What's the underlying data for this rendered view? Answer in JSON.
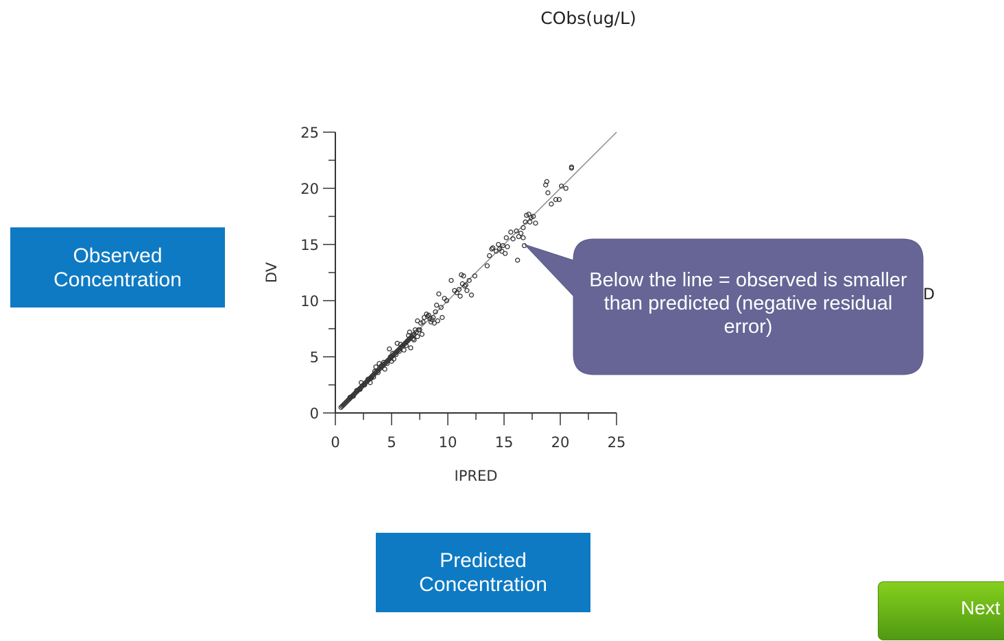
{
  "chart_data": {
    "type": "scatter",
    "title": "CObs(ug/L)",
    "xlabel": "IPRED",
    "ylabel": "DV",
    "xlim": [
      0,
      25
    ],
    "ylim": [
      0,
      25
    ],
    "x_ticks": [
      "0",
      "5",
      "10",
      "15",
      "20",
      "25"
    ],
    "y_ticks": [
      "0",
      "5",
      "10",
      "15",
      "20",
      "25"
    ],
    "identity_line": true,
    "points": [
      [
        0.5,
        0.5
      ],
      [
        0.6,
        0.6
      ],
      [
        0.7,
        0.7
      ],
      [
        0.8,
        0.8
      ],
      [
        0.9,
        0.9
      ],
      [
        1.0,
        1.0
      ],
      [
        1.1,
        1.1
      ],
      [
        1.2,
        1.2
      ],
      [
        1.3,
        1.3
      ],
      [
        1.4,
        1.4
      ],
      [
        1.5,
        1.5
      ],
      [
        1.6,
        1.6
      ],
      [
        1.7,
        1.7
      ],
      [
        1.8,
        1.8
      ],
      [
        1.9,
        1.9
      ],
      [
        2.0,
        2.0
      ],
      [
        2.1,
        2.1
      ],
      [
        2.2,
        2.2
      ],
      [
        2.3,
        2.3
      ],
      [
        2.4,
        2.4
      ],
      [
        2.5,
        2.5
      ],
      [
        2.6,
        2.6
      ],
      [
        2.7,
        2.7
      ],
      [
        2.8,
        2.8
      ],
      [
        2.9,
        2.9
      ],
      [
        3.0,
        3.0
      ],
      [
        3.1,
        3.1
      ],
      [
        3.2,
        3.2
      ],
      [
        3.3,
        3.3
      ],
      [
        3.4,
        3.4
      ],
      [
        3.5,
        3.5
      ],
      [
        3.6,
        3.6
      ],
      [
        3.7,
        3.7
      ],
      [
        3.8,
        3.8
      ],
      [
        3.9,
        3.9
      ],
      [
        4.0,
        4.0
      ],
      [
        4.1,
        4.1
      ],
      [
        4.2,
        4.2
      ],
      [
        4.3,
        4.3
      ],
      [
        4.4,
        4.4
      ],
      [
        4.5,
        4.5
      ],
      [
        4.6,
        4.6
      ],
      [
        4.7,
        4.7
      ],
      [
        4.8,
        4.8
      ],
      [
        4.9,
        4.9
      ],
      [
        5.0,
        5.0
      ],
      [
        5.1,
        5.1
      ],
      [
        5.2,
        5.2
      ],
      [
        5.3,
        5.3
      ],
      [
        5.4,
        5.4
      ],
      [
        5.5,
        5.5
      ],
      [
        5.6,
        5.6
      ],
      [
        5.7,
        5.7
      ],
      [
        5.8,
        5.8
      ],
      [
        5.9,
        5.9
      ],
      [
        6.0,
        6.0
      ],
      [
        6.1,
        6.1
      ],
      [
        6.2,
        6.2
      ],
      [
        6.3,
        6.3
      ],
      [
        6.4,
        6.4
      ],
      [
        6.5,
        6.5
      ],
      [
        6.6,
        6.6
      ],
      [
        6.7,
        6.7
      ],
      [
        6.8,
        6.8
      ],
      [
        6.9,
        6.9
      ],
      [
        7.0,
        7.0
      ],
      [
        7.2,
        7.2
      ],
      [
        7.4,
        7.4
      ],
      [
        1.3,
        1.4
      ],
      [
        1.6,
        1.5
      ],
      [
        1.9,
        2.0
      ],
      [
        2.2,
        2.1
      ],
      [
        2.6,
        2.5
      ],
      [
        2.9,
        3.0
      ],
      [
        3.2,
        3.1
      ],
      [
        3.5,
        3.7
      ],
      [
        3.8,
        3.6
      ],
      [
        4.1,
        4.2
      ],
      [
        4.3,
        4.5
      ],
      [
        4.6,
        4.4
      ],
      [
        5.1,
        5.3
      ],
      [
        5.4,
        5.2
      ],
      [
        5.8,
        6.1
      ],
      [
        6.3,
        6.0
      ],
      [
        6.5,
        6.9
      ],
      [
        6.9,
        6.6
      ],
      [
        7.1,
        7.4
      ],
      [
        2.3,
        2.7
      ],
      [
        3.1,
        2.7
      ],
      [
        3.6,
        4.1
      ],
      [
        4.4,
        3.9
      ],
      [
        5.0,
        4.6
      ],
      [
        5.5,
        6.2
      ],
      [
        6.1,
        5.6
      ],
      [
        6.6,
        7.2
      ],
      [
        7.0,
        6.5
      ],
      [
        4.8,
        5.7
      ],
      [
        5.2,
        4.8
      ],
      [
        6.7,
        5.8
      ],
      [
        3.4,
        3.2
      ],
      [
        3.9,
        4.4
      ],
      [
        4.9,
        5.0
      ],
      [
        5.7,
        5.5
      ],
      [
        6.4,
        6.4
      ],
      [
        7.3,
        6.8
      ],
      [
        7.5,
        7.4
      ],
      [
        7.3,
        8.2
      ],
      [
        7.6,
        8.0
      ],
      [
        7.7,
        7.0
      ],
      [
        7.9,
        8.5
      ],
      [
        8.1,
        8.8
      ],
      [
        8.3,
        8.7
      ],
      [
        8.4,
        8.4
      ],
      [
        8.6,
        8.3
      ],
      [
        8.9,
        9.0
      ],
      [
        8.8,
        8.0
      ],
      [
        9.0,
        9.6
      ],
      [
        9.1,
        8.2
      ],
      [
        9.4,
        9.4
      ],
      [
        9.5,
        8.5
      ],
      [
        8.2,
        8.6
      ],
      [
        8.5,
        8.1
      ],
      [
        7.8,
        8.1
      ],
      [
        9.7,
        10.2
      ],
      [
        9.2,
        10.6
      ],
      [
        9.9,
        10.0
      ],
      [
        8.7,
        8.5
      ],
      [
        10.3,
        11.8
      ],
      [
        10.8,
        10.7
      ],
      [
        11.0,
        11.0
      ],
      [
        11.2,
        12.3
      ],
      [
        11.4,
        12.2
      ],
      [
        11.3,
        11.5
      ],
      [
        11.6,
        11.4
      ],
      [
        11.1,
        10.4
      ],
      [
        11.7,
        10.9
      ],
      [
        11.9,
        11.8
      ],
      [
        11.5,
        11.3
      ],
      [
        12.1,
        10.5
      ],
      [
        12.4,
        12.2
      ],
      [
        10.6,
        10.9
      ],
      [
        13.5,
        13.1
      ],
      [
        13.7,
        14.0
      ],
      [
        13.9,
        14.6
      ],
      [
        14.0,
        14.7
      ],
      [
        14.3,
        14.4
      ],
      [
        14.5,
        15.0
      ],
      [
        14.6,
        14.6
      ],
      [
        14.9,
        14.9
      ],
      [
        14.8,
        14.4
      ],
      [
        15.2,
        15.6
      ],
      [
        15.1,
        14.2
      ],
      [
        15.3,
        14.8
      ],
      [
        15.6,
        16.1
      ],
      [
        15.8,
        15.5
      ],
      [
        16.1,
        16.2
      ],
      [
        16.3,
        15.7
      ],
      [
        16.5,
        16.0
      ],
      [
        16.7,
        16.5
      ],
      [
        16.9,
        17.0
      ],
      [
        17.2,
        17.7
      ],
      [
        17.4,
        17.4
      ],
      [
        17.6,
        17.5
      ],
      [
        16.8,
        14.9
      ],
      [
        16.7,
        15.6
      ],
      [
        16.2,
        13.6
      ],
      [
        17.0,
        17.6
      ],
      [
        17.3,
        17.0
      ],
      [
        17.8,
        16.9
      ],
      [
        18.7,
        20.3
      ],
      [
        18.8,
        20.6
      ],
      [
        18.9,
        19.6
      ],
      [
        19.2,
        18.6
      ],
      [
        19.6,
        19.0
      ],
      [
        19.9,
        19.0
      ],
      [
        20.1,
        20.2
      ],
      [
        20.5,
        20.0
      ],
      [
        21.0,
        21.9
      ],
      [
        21.0,
        21.8
      ]
    ]
  },
  "labels": {
    "observed_box": "Observed Concentration",
    "predicted_box": "Predicted Concentration",
    "callout_text": "Below the line = observed is smaller than predicted (negative residual error)",
    "clipped_label": "D",
    "next_button": "Next"
  },
  "colors": {
    "box_blue": "#0e7ac4",
    "callout_fill": "#666596",
    "next_green": "#6ab51a",
    "marker": "#333333"
  }
}
